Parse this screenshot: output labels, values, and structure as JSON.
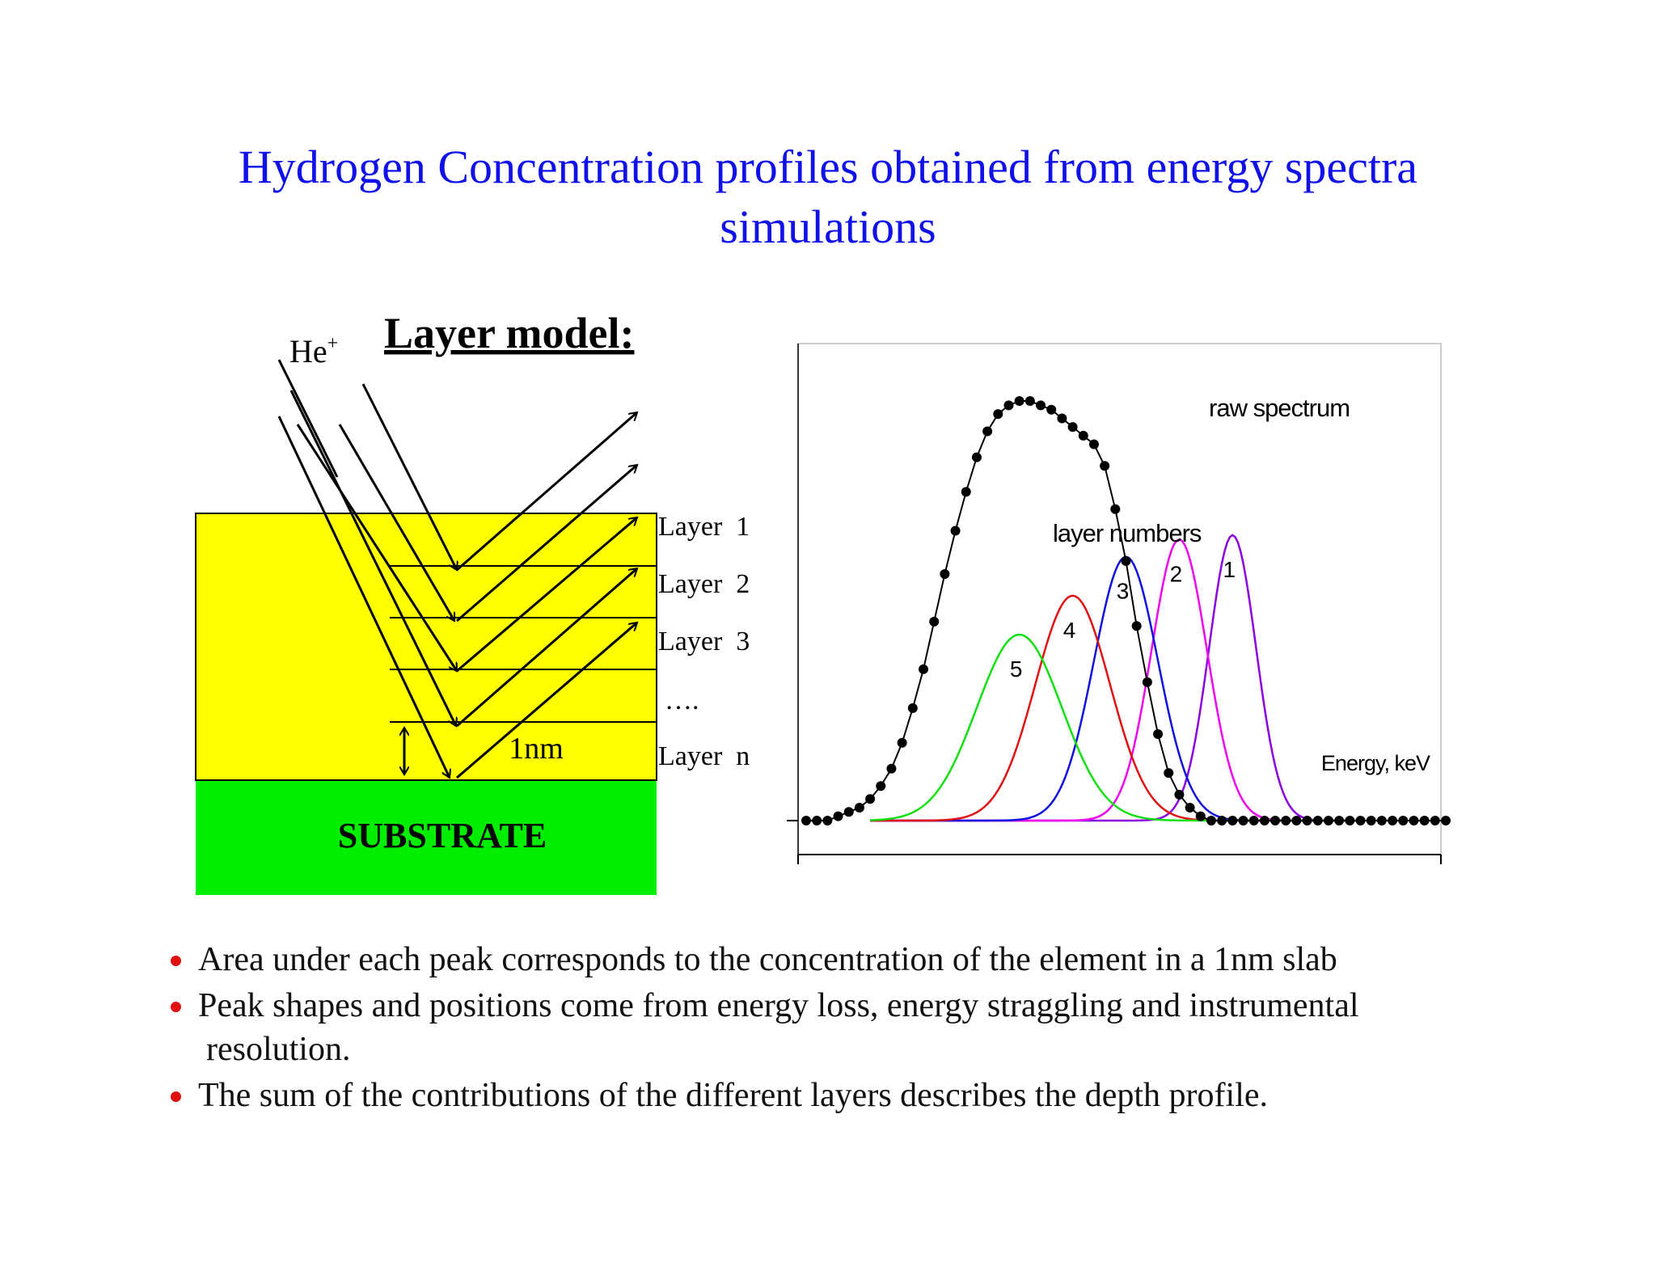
{
  "title": {
    "line1": "Hydrogen Concentration profiles obtained from energy spectra",
    "line2": "simulations"
  },
  "layer_model": {
    "heading": "Layer model:",
    "ion_label": "He",
    "ion_charge": "+",
    "layer_labels": [
      "Layer  1",
      "Layer  2",
      "Layer  3",
      "….",
      "Layer  n"
    ],
    "thickness_label": "1nm",
    "substrate_label": "SUBSTRATE",
    "colors": {
      "layers": "#ffff00",
      "substrate": "#00ee00"
    }
  },
  "chart_data": {
    "type": "line",
    "title": "",
    "xlabel": "Energy, keV",
    "ylabel": "",
    "xlim": [
      0,
      60
    ],
    "ylim": [
      0,
      100
    ],
    "annotations": {
      "raw_spectrum": "raw spectrum",
      "layer_numbers": "layer numbers"
    },
    "series": [
      {
        "name": "raw spectrum",
        "color": "#000000",
        "style": "dots",
        "x": [
          0,
          1,
          2,
          3,
          4,
          5,
          6,
          7,
          8,
          9,
          10,
          11,
          12,
          13,
          14,
          15,
          16,
          17,
          18,
          19,
          20,
          21,
          22,
          23,
          24,
          25,
          26,
          27,
          28,
          29,
          30,
          31,
          32,
          33,
          34,
          35,
          36,
          37,
          38,
          39,
          40,
          41,
          42,
          43,
          44,
          45,
          46,
          47,
          48,
          49,
          50,
          51,
          52,
          53,
          54,
          55,
          56,
          57,
          58,
          59,
          60
        ],
        "y": [
          0,
          0,
          0,
          1,
          2,
          3,
          5,
          8,
          12,
          18,
          26,
          35,
          46,
          57,
          67,
          76,
          84,
          90,
          94,
          96,
          97,
          97,
          96,
          95,
          93,
          91,
          89,
          87,
          82,
          72,
          60,
          45,
          32,
          20,
          11,
          6,
          3,
          1,
          0,
          0,
          0,
          0,
          0,
          0,
          0,
          0,
          0,
          0,
          0,
          0,
          0,
          0,
          0,
          0,
          0,
          0,
          0,
          0,
          0,
          0,
          0
        ]
      },
      {
        "name": "1",
        "color": "#8a00e0",
        "peak_x": 40,
        "peak_y": 66,
        "width": 2.2
      },
      {
        "name": "2",
        "color": "#f000f0",
        "peak_x": 35,
        "peak_y": 65,
        "width": 2.6
      },
      {
        "name": "3",
        "color": "#1010e0",
        "peak_x": 30,
        "peak_y": 61,
        "width": 3.0
      },
      {
        "name": "4",
        "color": "#e01010",
        "peak_x": 25,
        "peak_y": 52,
        "width": 3.5
      },
      {
        "name": "5",
        "color": "#10e010",
        "peak_x": 20,
        "peak_y": 43,
        "width": 4.0
      }
    ]
  },
  "bullets": [
    {
      "text": "Area under each peak corresponds to the concentration of the element in a 1nm slab"
    },
    {
      "text": "Peak shapes and positions come from energy loss, energy straggling and instrumental",
      "cont": "resolution."
    },
    {
      "text": "The sum of the contributions of the different layers describes the depth profile."
    }
  ]
}
